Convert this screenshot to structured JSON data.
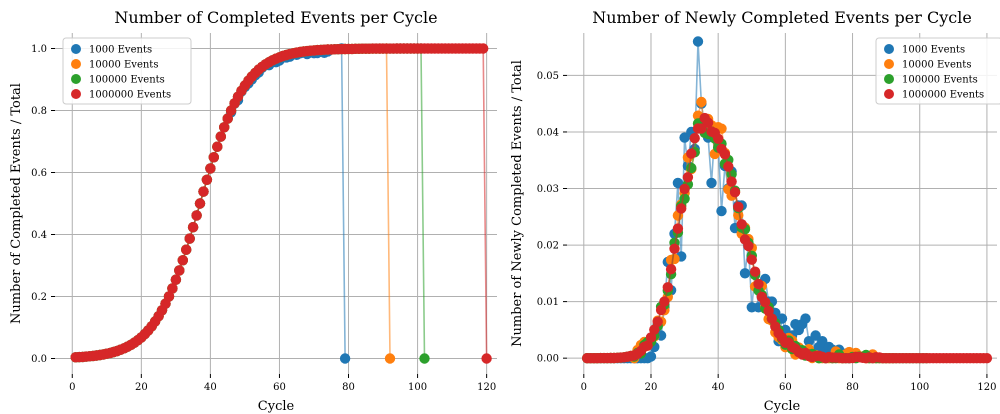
{
  "colors": {
    "s0": "#1f77b4",
    "s1": "#ff7f0e",
    "s2": "#2ca02c",
    "s3": "#d62728"
  },
  "chart_data": [
    {
      "type": "line",
      "title": "Number of Completed Events per Cycle",
      "xlabel": "Cycle",
      "ylabel": "Number of Completed Events / Total",
      "xlim": [
        -5,
        123
      ],
      "ylim": [
        -0.05,
        1.05
      ],
      "xticks": [
        0,
        20,
        40,
        60,
        80,
        100,
        120
      ],
      "xtick_labels": [
        "0",
        "20",
        "40",
        "60",
        "80",
        "100",
        "120"
      ],
      "yticks": [
        0.0,
        0.2,
        0.4,
        0.6,
        0.8,
        1.0
      ],
      "ytick_labels": [
        "0.0",
        "0.2",
        "0.4",
        "0.6",
        "0.8",
        "1.0"
      ],
      "grid": true,
      "legend": "upper-left",
      "curve": "logistic",
      "curve_params": {
        "midpoint": 37,
        "scale": 6.5
      },
      "series": [
        {
          "name": "1000 Events",
          "x_end": 78,
          "drop_x": 79
        },
        {
          "name": "10000 Events",
          "x_end": 91,
          "drop_x": 92
        },
        {
          "name": "100000 Events",
          "x_end": 101,
          "drop_x": 102
        },
        {
          "name": "1000000 Events",
          "x_end": 119,
          "drop_x": 120
        }
      ]
    },
    {
      "type": "line",
      "title": "Number of Newly Completed Events per Cycle",
      "xlabel": "Cycle",
      "ylabel": "Number of Newly Completed Events / Total",
      "xlim": [
        -5,
        123
      ],
      "ylim": [
        -0.0028,
        0.0575
      ],
      "xticks": [
        0,
        20,
        40,
        60,
        80,
        100,
        120
      ],
      "xtick_labels": [
        "0",
        "20",
        "40",
        "60",
        "80",
        "100",
        "120"
      ],
      "yticks": [
        0.0,
        0.01,
        0.02,
        0.03,
        0.04,
        0.05
      ],
      "ytick_labels": [
        "0.00",
        "0.01",
        "0.02",
        "0.03",
        "0.04",
        "0.05"
      ],
      "grid": true,
      "legend": "upper-right",
      "series": [
        {
          "name": "1000 Events",
          "x_end": 79
        },
        {
          "name": "10000 Events",
          "x_end": 92
        },
        {
          "name": "100000 Events",
          "x_end": 102
        },
        {
          "name": "1000000 Events",
          "x_end": 120
        }
      ],
      "noisy_values_1000": [
        [
          20,
          0.0003
        ],
        [
          21,
          0.002
        ],
        [
          22,
          0.006
        ],
        [
          23,
          0.004
        ],
        [
          24,
          0.009
        ],
        [
          25,
          0.017
        ],
        [
          26,
          0.012
        ],
        [
          27,
          0.022
        ],
        [
          28,
          0.031
        ],
        [
          29,
          0.018
        ],
        [
          30,
          0.039
        ],
        [
          31,
          0.034
        ],
        [
          32,
          0.04
        ],
        [
          33,
          0.037
        ],
        [
          34,
          0.056
        ],
        [
          35,
          0.045
        ],
        [
          36,
          0.041
        ],
        [
          37,
          0.039
        ],
        [
          38,
          0.031
        ],
        [
          39,
          0.04
        ],
        [
          40,
          0.038
        ],
        [
          41,
          0.026
        ],
        [
          42,
          0.034
        ],
        [
          43,
          0.03
        ],
        [
          44,
          0.033
        ],
        [
          45,
          0.023
        ],
        [
          46,
          0.027
        ],
        [
          47,
          0.027
        ],
        [
          48,
          0.015
        ],
        [
          49,
          0.02
        ],
        [
          50,
          0.009
        ],
        [
          51,
          0.015
        ],
        [
          52,
          0.009
        ],
        [
          53,
          0.011
        ],
        [
          54,
          0.014
        ],
        [
          55,
          0.01
        ],
        [
          56,
          0.01
        ],
        [
          57,
          0.008
        ],
        [
          58,
          0.003
        ],
        [
          59,
          0.007
        ],
        [
          60,
          0.005
        ],
        [
          61,
          0.003
        ],
        [
          62,
          0.004
        ],
        [
          63,
          0.006
        ],
        [
          64,
          0.005
        ],
        [
          65,
          0.006
        ],
        [
          66,
          0.007
        ],
        [
          67,
          0.003
        ],
        [
          68,
          0.001
        ],
        [
          69,
          0.004
        ],
        [
          70,
          0.002
        ],
        [
          71,
          0.003
        ],
        [
          72,
          0.001
        ],
        [
          73,
          0.002
        ],
        [
          74,
          0.0015
        ],
        [
          75,
          0.0005
        ],
        [
          76,
          0.0015
        ],
        [
          77,
          0.0005
        ],
        [
          78,
          0.0008
        ],
        [
          79,
          0.0
        ]
      ]
    }
  ]
}
